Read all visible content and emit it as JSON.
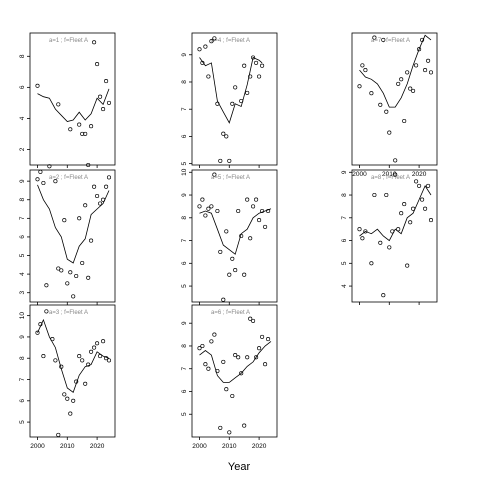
{
  "xlabel": "Year",
  "chart_data": [
    {
      "type": "scatter",
      "strip": "a=1  ;  f=Fleet A",
      "ylim": [
        1,
        9.5
      ],
      "yticks": [
        2,
        4,
        6,
        8
      ],
      "obs": [
        [
          2000,
          6.1
        ],
        [
          2007,
          4.9
        ],
        [
          2011,
          3.3
        ],
        [
          2014,
          3.6
        ],
        [
          2015,
          3.0
        ],
        [
          2016,
          3.0
        ],
        [
          2017,
          1.0
        ],
        [
          2018,
          3.5
        ],
        [
          2019,
          8.9
        ],
        [
          2020,
          7.5
        ],
        [
          2021,
          5.4
        ],
        [
          2022,
          4.6
        ],
        [
          2023,
          6.4
        ],
        [
          2024,
          5.0
        ]
      ],
      "fit": [
        [
          2000,
          5.6
        ],
        [
          2002,
          5.4
        ],
        [
          2004,
          5.3
        ],
        [
          2006,
          4.6
        ],
        [
          2008,
          4.2
        ],
        [
          2010,
          3.8
        ],
        [
          2012,
          3.9
        ],
        [
          2014,
          4.4
        ],
        [
          2016,
          3.9
        ],
        [
          2018,
          4.3
        ],
        [
          2020,
          5.3
        ],
        [
          2022,
          4.9
        ],
        [
          2024,
          5.9
        ]
      ]
    },
    {
      "type": "scatter",
      "strip": "a=4  ;  f=Fleet A",
      "ylim": [
        4.95,
        9.8
      ],
      "yticks": [
        5,
        6,
        7,
        8,
        9
      ],
      "obs": [
        [
          2000,
          9.2
        ],
        [
          2001,
          8.7
        ],
        [
          2002,
          9.3
        ],
        [
          2003,
          8.2
        ],
        [
          2004,
          9.5
        ],
        [
          2005,
          9.6
        ],
        [
          2006,
          7.2
        ],
        [
          2007,
          5.1
        ],
        [
          2008,
          6.1
        ],
        [
          2009,
          6.0
        ],
        [
          2010,
          5.1
        ],
        [
          2011,
          7.2
        ],
        [
          2012,
          7.8
        ],
        [
          2014,
          7.3
        ],
        [
          2015,
          8.6
        ],
        [
          2016,
          7.6
        ],
        [
          2017,
          8.2
        ],
        [
          2018,
          8.9
        ],
        [
          2019,
          8.7
        ],
        [
          2020,
          8.2
        ],
        [
          2021,
          8.6
        ]
      ],
      "fit": [
        [
          2000,
          8.9
        ],
        [
          2002,
          8.6
        ],
        [
          2004,
          8.7
        ],
        [
          2006,
          7.3
        ],
        [
          2008,
          6.9
        ],
        [
          2010,
          6.5
        ],
        [
          2012,
          7.2
        ],
        [
          2014,
          7.1
        ],
        [
          2016,
          7.9
        ],
        [
          2018,
          8.9
        ],
        [
          2020,
          8.8
        ],
        [
          2021,
          8.7
        ]
      ]
    },
    {
      "type": "scatter",
      "strip": "a=7  ;  f=Fleet A",
      "ylim": [
        3.0,
        8.7
      ],
      "yticks": [],
      "obs": [
        [
          2000,
          6.4
        ],
        [
          2001,
          7.3
        ],
        [
          2002,
          7.1
        ],
        [
          2004,
          6.1
        ],
        [
          2005,
          8.5
        ],
        [
          2007,
          5.6
        ],
        [
          2008,
          8.4
        ],
        [
          2009,
          5.3
        ],
        [
          2010,
          4.4
        ],
        [
          2012,
          3.2
        ],
        [
          2013,
          6.5
        ],
        [
          2014,
          6.7
        ],
        [
          2015,
          4.9
        ],
        [
          2016,
          7.0
        ],
        [
          2017,
          6.3
        ],
        [
          2018,
          6.2
        ],
        [
          2019,
          7.3
        ],
        [
          2020,
          8.0
        ],
        [
          2021,
          8.4
        ],
        [
          2022,
          7.1
        ],
        [
          2023,
          7.5
        ],
        [
          2024,
          7.0
        ]
      ],
      "fit": [
        [
          2000,
          7.1
        ],
        [
          2002,
          6.8
        ],
        [
          2004,
          6.7
        ],
        [
          2006,
          6.5
        ],
        [
          2008,
          6.1
        ],
        [
          2010,
          5.5
        ],
        [
          2012,
          5.5
        ],
        [
          2014,
          5.9
        ],
        [
          2016,
          6.5
        ],
        [
          2018,
          7.3
        ],
        [
          2020,
          8.0
        ],
        [
          2022,
          8.6
        ],
        [
          2024,
          8.4
        ]
      ]
    },
    {
      "type": "scatter",
      "strip": "a=2  ;  f=Fleet A",
      "ylim": [
        2.5,
        9.6
      ],
      "yticks": [
        3,
        4,
        5,
        6,
        7,
        8,
        9
      ],
      "obs": [
        [
          2000,
          9.1
        ],
        [
          2001,
          9.5
        ],
        [
          2002,
          8.9
        ],
        [
          2003,
          3.4
        ],
        [
          2004,
          9.8
        ],
        [
          2006,
          9.0
        ],
        [
          2007,
          4.3
        ],
        [
          2008,
          4.2
        ],
        [
          2009,
          6.9
        ],
        [
          2010,
          3.5
        ],
        [
          2011,
          4.1
        ],
        [
          2012,
          2.8
        ],
        [
          2013,
          3.9
        ],
        [
          2014,
          7.0
        ],
        [
          2015,
          4.6
        ],
        [
          2016,
          7.7
        ],
        [
          2017,
          3.8
        ],
        [
          2018,
          5.8
        ],
        [
          2019,
          8.7
        ],
        [
          2020,
          8.2
        ],
        [
          2021,
          7.8
        ],
        [
          2022,
          8.0
        ],
        [
          2023,
          8.7
        ],
        [
          2024,
          9.2
        ]
      ],
      "fit": [
        [
          2000,
          8.8
        ],
        [
          2002,
          8.0
        ],
        [
          2004,
          7.5
        ],
        [
          2006,
          6.5
        ],
        [
          2008,
          6.0
        ],
        [
          2010,
          4.8
        ],
        [
          2012,
          4.6
        ],
        [
          2014,
          5.5
        ],
        [
          2016,
          5.9
        ],
        [
          2018,
          7.2
        ],
        [
          2020,
          7.5
        ],
        [
          2022,
          7.8
        ],
        [
          2024,
          8.5
        ]
      ]
    },
    {
      "type": "scatter",
      "strip": "a=5  ;  f=Fleet A",
      "ylim": [
        4.3,
        10.1
      ],
      "yticks": [
        5,
        6,
        7,
        8,
        9,
        10
      ],
      "obs": [
        [
          2000,
          8.5
        ],
        [
          2001,
          8.8
        ],
        [
          2002,
          8.1
        ],
        [
          2003,
          8.4
        ],
        [
          2004,
          8.5
        ],
        [
          2005,
          9.9
        ],
        [
          2006,
          8.3
        ],
        [
          2007,
          6.5
        ],
        [
          2008,
          4.4
        ],
        [
          2009,
          7.4
        ],
        [
          2010,
          5.5
        ],
        [
          2011,
          6.2
        ],
        [
          2012,
          5.7
        ],
        [
          2013,
          8.3
        ],
        [
          2014,
          7.2
        ],
        [
          2015,
          5.5
        ],
        [
          2016,
          8.8
        ],
        [
          2017,
          7.1
        ],
        [
          2018,
          8.5
        ],
        [
          2019,
          8.8
        ],
        [
          2020,
          7.9
        ],
        [
          2021,
          8.3
        ],
        [
          2022,
          7.6
        ],
        [
          2023,
          8.3
        ]
      ],
      "fit": [
        [
          2000,
          8.2
        ],
        [
          2002,
          8.3
        ],
        [
          2004,
          8.2
        ],
        [
          2006,
          7.5
        ],
        [
          2008,
          6.8
        ],
        [
          2010,
          6.6
        ],
        [
          2012,
          6.4
        ],
        [
          2014,
          7.3
        ],
        [
          2016,
          7.5
        ],
        [
          2018,
          8.0
        ],
        [
          2020,
          8.2
        ],
        [
          2022,
          8.3
        ],
        [
          2024,
          8.4
        ]
      ]
    },
    {
      "type": "scatter",
      "strip": "a=8  ;  f=Fleet A",
      "ylim": [
        3.3,
        9.1
      ],
      "yticks": [
        4,
        5,
        6,
        7,
        8,
        9
      ],
      "obs": [
        [
          2000,
          6.5
        ],
        [
          2001,
          6.1
        ],
        [
          2002,
          6.4
        ],
        [
          2004,
          5.0
        ],
        [
          2005,
          8.0
        ],
        [
          2007,
          5.9
        ],
        [
          2008,
          3.6
        ],
        [
          2009,
          8.0
        ],
        [
          2010,
          5.7
        ],
        [
          2011,
          6.4
        ],
        [
          2012,
          8.9
        ],
        [
          2013,
          6.5
        ],
        [
          2014,
          7.2
        ],
        [
          2015,
          7.6
        ],
        [
          2016,
          4.9
        ],
        [
          2017,
          6.8
        ],
        [
          2018,
          7.4
        ],
        [
          2019,
          8.6
        ],
        [
          2020,
          8.4
        ],
        [
          2021,
          7.8
        ],
        [
          2022,
          7.4
        ],
        [
          2023,
          8.4
        ],
        [
          2024,
          6.9
        ]
      ],
      "fit": [
        [
          2000,
          6.2
        ],
        [
          2002,
          6.4
        ],
        [
          2004,
          6.3
        ],
        [
          2006,
          6.5
        ],
        [
          2008,
          6.2
        ],
        [
          2010,
          6.0
        ],
        [
          2012,
          6.5
        ],
        [
          2014,
          6.3
        ],
        [
          2016,
          7.0
        ],
        [
          2018,
          7.2
        ],
        [
          2020,
          7.8
        ],
        [
          2022,
          8.4
        ],
        [
          2024,
          8.0
        ]
      ]
    },
    {
      "type": "scatter",
      "strip": "a=3  ;  f=Fleet A",
      "ylim": [
        4.3,
        10.5
      ],
      "yticks": [
        5,
        6,
        7,
        8,
        9,
        10
      ],
      "obs": [
        [
          2000,
          9.2
        ],
        [
          2001,
          9.6
        ],
        [
          2002,
          8.1
        ],
        [
          2003,
          10.2
        ],
        [
          2005,
          8.9
        ],
        [
          2006,
          7.9
        ],
        [
          2007,
          4.4
        ],
        [
          2008,
          7.6
        ],
        [
          2009,
          6.3
        ],
        [
          2010,
          6.1
        ],
        [
          2011,
          5.4
        ],
        [
          2012,
          6.0
        ],
        [
          2013,
          6.9
        ],
        [
          2014,
          8.1
        ],
        [
          2015,
          7.9
        ],
        [
          2016,
          6.8
        ],
        [
          2017,
          7.7
        ],
        [
          2018,
          8.3
        ],
        [
          2019,
          8.5
        ],
        [
          2020,
          8.7
        ],
        [
          2021,
          8.1
        ],
        [
          2022,
          8.8
        ],
        [
          2023,
          8.0
        ],
        [
          2024,
          7.9
        ]
      ],
      "fit": [
        [
          2000,
          9.2
        ],
        [
          2002,
          9.8
        ],
        [
          2004,
          9.0
        ],
        [
          2006,
          8.5
        ],
        [
          2008,
          7.5
        ],
        [
          2010,
          6.6
        ],
        [
          2012,
          6.4
        ],
        [
          2014,
          7.2
        ],
        [
          2016,
          7.6
        ],
        [
          2018,
          7.7
        ],
        [
          2020,
          8.3
        ],
        [
          2022,
          8.1
        ],
        [
          2024,
          8.0
        ]
      ]
    },
    {
      "type": "scatter",
      "strip": "a=6  ;  f=Fleet A",
      "ylim": [
        4.0,
        9.8
      ],
      "yticks": [
        5,
        6,
        7,
        8,
        9
      ],
      "obs": [
        [
          2000,
          7.9
        ],
        [
          2001,
          8.0
        ],
        [
          2002,
          7.2
        ],
        [
          2003,
          7.0
        ],
        [
          2004,
          8.2
        ],
        [
          2005,
          8.5
        ],
        [
          2006,
          6.9
        ],
        [
          2007,
          4.4
        ],
        [
          2008,
          7.3
        ],
        [
          2009,
          6.1
        ],
        [
          2010,
          4.2
        ],
        [
          2011,
          5.8
        ],
        [
          2012,
          7.6
        ],
        [
          2013,
          7.5
        ],
        [
          2014,
          6.8
        ],
        [
          2015,
          4.5
        ],
        [
          2016,
          7.5
        ],
        [
          2017,
          9.2
        ],
        [
          2018,
          9.1
        ],
        [
          2019,
          7.5
        ],
        [
          2020,
          7.9
        ],
        [
          2021,
          8.4
        ],
        [
          2022,
          7.2
        ],
        [
          2023,
          8.3
        ]
      ],
      "fit": [
        [
          2000,
          7.6
        ],
        [
          2002,
          7.8
        ],
        [
          2004,
          7.6
        ],
        [
          2006,
          6.7
        ],
        [
          2008,
          6.4
        ],
        [
          2010,
          6.4
        ],
        [
          2012,
          6.6
        ],
        [
          2014,
          6.8
        ],
        [
          2016,
          7.1
        ],
        [
          2018,
          7.3
        ],
        [
          2020,
          7.7
        ],
        [
          2022,
          8.0
        ],
        [
          2024,
          8.2
        ]
      ]
    }
  ],
  "xaxis": {
    "range": [
      1997.5,
      2026
    ],
    "ticks": [
      2000,
      2010,
      2020
    ]
  }
}
